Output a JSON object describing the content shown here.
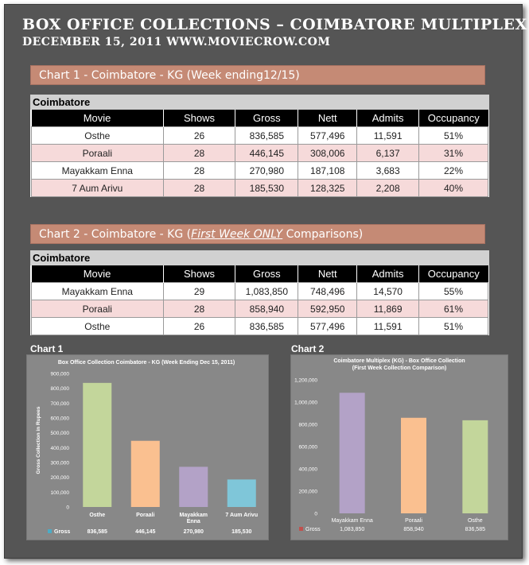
{
  "header": {
    "title": "BOX OFFICE COLLECTIONS – COIMBATORE MULTIPLEX",
    "subtitle": "DECEMBER 15, 2011 WWW.MOVIECROW.COM"
  },
  "section1": {
    "banner": "Chart 1 - Coimbatore - KG (Week ending12/15)",
    "caption": "Coimbatore",
    "headers": [
      "Movie",
      "Shows",
      "Gross",
      "Nett",
      "Admits",
      "Occupancy"
    ],
    "rows": [
      [
        "Osthe",
        "26",
        "836,585",
        "577,496",
        "11,591",
        "51%"
      ],
      [
        "Poraali",
        "28",
        "446,145",
        "308,006",
        "6,137",
        "31%"
      ],
      [
        "Mayakkam Enna",
        "28",
        "270,980",
        "187,108",
        "3,683",
        "22%"
      ],
      [
        "7 Aum Arivu",
        "28",
        "185,530",
        "128,325",
        "2,208",
        "40%"
      ]
    ]
  },
  "section2": {
    "banner_prefix": "Chart 2 - Coimbatore - KG (",
    "banner_emph": "First Week ONLY",
    "banner_suffix": " Comparisons)",
    "caption": "Coimbatore",
    "headers": [
      "Movie",
      "Shows",
      "Gross",
      "Nett",
      "Admits",
      "Occupancy"
    ],
    "rows": [
      [
        "Mayakkam Enna",
        "29",
        "1,083,850",
        "748,496",
        "14,570",
        "55%"
      ],
      [
        "Poraali",
        "28",
        "858,940",
        "592,950",
        "11,869",
        "61%"
      ],
      [
        "Osthe",
        "26",
        "836,585",
        "577,496",
        "11,591",
        "51%"
      ]
    ]
  },
  "chart_labels": {
    "chart1": "Chart 1",
    "chart2": "Chart 2"
  },
  "chart_data": [
    {
      "type": "bar",
      "title": "Box Office Collection Coimbatore - KG (Week Ending Dec 15, 2011)",
      "ylabel": "Gross Collection in Rupees",
      "xlabel": "",
      "categories": [
        "Osthe",
        "Poraali",
        "Mayakkam Enna",
        "7 Aum Arivu"
      ],
      "category_lines": [
        [
          "Osthe"
        ],
        [
          "Poraali"
        ],
        [
          "Mayakkam",
          "Enna"
        ],
        [
          "7 Aum Arivu"
        ]
      ],
      "series": [
        {
          "name": "Gross",
          "values": [
            836585,
            446145,
            270980,
            185530
          ]
        }
      ],
      "value_labels": [
        "836,585",
        "446,145",
        "270,980",
        "185,530"
      ],
      "bar_colors": [
        "#c3d69b",
        "#fac090",
        "#b3a2c7",
        "#7fc6d9"
      ],
      "legend_color": "#4bacc6",
      "ylim": [
        0,
        900000
      ],
      "ytick_step": 100000,
      "ytick_labels": [
        "0",
        "100,000",
        "200,000",
        "300,000",
        "400,000",
        "500,000",
        "600,000",
        "700,000",
        "800,000",
        "900,000"
      ],
      "grid": false,
      "legend": "bottom-data-table"
    },
    {
      "type": "bar",
      "title_lines": [
        "Coimbatore Multiplex (KG) - Box Office Collection",
        "(First Week Collection Comparison)"
      ],
      "xlabel": "",
      "ylabel": "",
      "categories": [
        "Mayakkam Enna",
        "Poraali",
        "Osthe"
      ],
      "category_lines": [
        [
          "Mayakkam Enna"
        ],
        [
          "Poraali"
        ],
        [
          "Osthe"
        ]
      ],
      "series": [
        {
          "name": "Gross",
          "values": [
            1083850,
            858940,
            836585
          ]
        }
      ],
      "value_labels": [
        "1,083,850",
        "858,940",
        "836,585"
      ],
      "bar_colors": [
        "#b3a2c7",
        "#fac090",
        "#c3d69b"
      ],
      "legend_color": "#c0504d",
      "ylim": [
        0,
        1200000
      ],
      "ytick_step": 200000,
      "ytick_labels": [
        "0",
        "200,000",
        "400,000",
        "600,000",
        "800,000",
        "1,000,000",
        "1,200,000"
      ],
      "grid": false,
      "legend": "bottom-data-table"
    }
  ]
}
